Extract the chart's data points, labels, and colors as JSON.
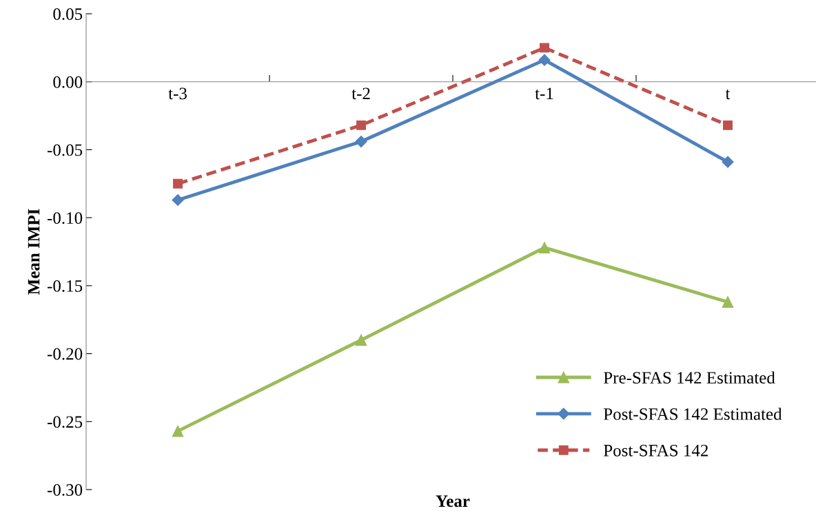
{
  "chart_data": {
    "type": "line",
    "xlabel": "Year",
    "ylabel": "Mean IMPI",
    "categories": [
      "t-3",
      "t-2",
      "t-1",
      "t"
    ],
    "series": [
      {
        "name": "Pre-SFAS 142 Estimated",
        "color": "#9bbb59",
        "marker": "triangle",
        "line_style": "solid",
        "values": [
          -0.257,
          -0.19,
          -0.122,
          -0.162
        ]
      },
      {
        "name": "Post-SFAS 142 Estimated",
        "color": "#4f81bd",
        "marker": "diamond",
        "line_style": "solid",
        "values": [
          -0.087,
          -0.044,
          0.016,
          -0.059
        ]
      },
      {
        "name": "Post-SFAS 142",
        "color": "#c0504d",
        "marker": "square",
        "line_style": "dashed",
        "values": [
          -0.075,
          -0.032,
          0.025,
          -0.032
        ]
      }
    ],
    "ylim": [
      -0.3,
      0.05
    ],
    "yticks": [
      {
        "value": -0.3,
        "label": "-0.30"
      },
      {
        "value": -0.25,
        "label": "-0.25"
      },
      {
        "value": -0.2,
        "label": "-0.20"
      },
      {
        "value": -0.15,
        "label": "-0.15"
      },
      {
        "value": -0.1,
        "label": "-0.10"
      },
      {
        "value": -0.05,
        "label": "-0.05"
      },
      {
        "value": 0.0,
        "label": "0.00"
      },
      {
        "value": 0.05,
        "label": "0.05"
      }
    ],
    "grid": false,
    "legend": "bottom right"
  }
}
